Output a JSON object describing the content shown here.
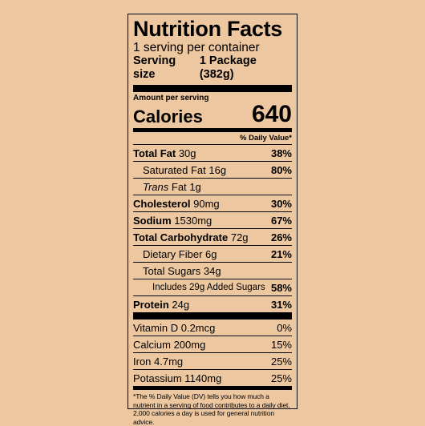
{
  "label": {
    "title": "Nutrition Facts",
    "servings": "1 serving per container",
    "serving_size_label": "Serving size",
    "serving_size_value": "1 Package (382g)",
    "amount_per_serving": "Amount per serving",
    "calories_label": "Calories",
    "calories_value": "640",
    "dv_header": "% Daily Value*"
  },
  "nutrients": [
    {
      "name": "Total Fat",
      "amount": "30g",
      "dv": "38%"
    },
    {
      "name": "Saturated Fat",
      "amount": "16g",
      "dv": "80%"
    },
    {
      "name_italic": "Trans",
      "name": "Fat",
      "amount": "1g",
      "dv": ""
    },
    {
      "name": "Cholesterol",
      "amount": "90mg",
      "dv": "30%"
    },
    {
      "name": "Sodium",
      "amount": "1530mg",
      "dv": "67%"
    },
    {
      "name": "Total Carbohydrate",
      "amount": "72g",
      "dv": "26%"
    },
    {
      "name": "Dietary Fiber",
      "amount": "6g",
      "dv": "21%"
    },
    {
      "name": "Total Sugars",
      "amount": "34g",
      "dv": ""
    },
    {
      "name": "Includes 29g Added Sugars",
      "amount": "",
      "dv": "58%"
    },
    {
      "name": "Protein",
      "amount": "24g",
      "dv": "31%"
    }
  ],
  "vitamins": [
    {
      "text": "Vitamin D 0.2mcg",
      "dv": "0%"
    },
    {
      "text": "Calcium 200mg",
      "dv": "15%"
    },
    {
      "text": "Iron 4.7mg",
      "dv": "25%"
    },
    {
      "text": "Potassium 1140mg",
      "dv": "25%"
    }
  ],
  "footnote": "*The % Daily Value (DV) tells you how much a nutrient in a serving of food contributes to a daily diet. 2,000 calories a day is used for general nutrition advice."
}
